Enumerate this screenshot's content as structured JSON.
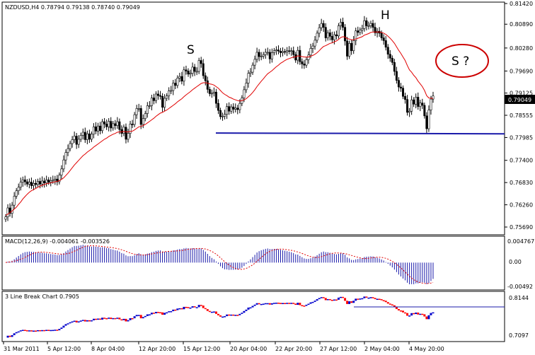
{
  "chart_data": [
    {
      "type": "candlestick",
      "title": "NZDUSD,H4  0.78794 0.79138 0.78740 0.79049",
      "ylim": [
        0.756,
        0.8142
      ],
      "y_ticks": [
        "0.81420",
        "0.80890",
        "0.80280",
        "0.79690",
        "0.79125",
        "0.78555",
        "0.77985",
        "0.77400",
        "0.76830",
        "0.76260",
        "0.75690"
      ],
      "last_price": "0.79049",
      "close": [
        0.7595,
        0.7618,
        0.7604,
        0.7625,
        0.7648,
        0.7662,
        0.7671,
        0.7684,
        0.769,
        0.7685,
        0.7679,
        0.7684,
        0.7675,
        0.7681,
        0.7678,
        0.7686,
        0.7679,
        0.7687,
        0.7682,
        0.769,
        0.7684,
        0.7688,
        0.7689,
        0.7692,
        0.7685,
        0.7702,
        0.7718,
        0.7741,
        0.776,
        0.777,
        0.7783,
        0.7793,
        0.7802,
        0.7781,
        0.7794,
        0.7804,
        0.7812,
        0.7793,
        0.7808,
        0.7794,
        0.7807,
        0.7826,
        0.7815,
        0.7828,
        0.7816,
        0.7839,
        0.7833,
        0.7826,
        0.784,
        0.7823,
        0.7834,
        0.7829,
        0.7839,
        0.7819,
        0.7809,
        0.7825,
        0.7794,
        0.7809,
        0.7833,
        0.7832,
        0.7857,
        0.7873,
        0.7873,
        0.7832,
        0.7847,
        0.786,
        0.788,
        0.788,
        0.79,
        0.7893,
        0.791,
        0.7906,
        0.7904,
        0.7876,
        0.7899,
        0.7905,
        0.7918,
        0.7919,
        0.7938,
        0.7932,
        0.7951,
        0.7955,
        0.7943,
        0.7972,
        0.7969,
        0.7961,
        0.7963,
        0.7979,
        0.7968,
        0.7968,
        0.7996,
        0.7988,
        0.7957,
        0.7944,
        0.7922,
        0.7911,
        0.7912,
        0.7915,
        0.7886,
        0.7868,
        0.7852,
        0.7853,
        0.7858,
        0.7878,
        0.7866,
        0.7877,
        0.7871,
        0.7874,
        0.787,
        0.7886,
        0.79,
        0.7921,
        0.7938,
        0.7963,
        0.7966,
        0.7984,
        0.7999,
        0.8017,
        0.8006,
        0.8007,
        0.8011,
        0.8017,
        0.8017,
        0.8,
        0.8016,
        0.8021,
        0.8023,
        0.802,
        0.8016,
        0.8019,
        0.8018,
        0.8021,
        0.802,
        0.8021,
        0.8011,
        0.7997,
        0.8022,
        0.7993,
        0.7987,
        0.7984,
        0.7998,
        0.801,
        0.8027,
        0.8033,
        0.8048,
        0.8066,
        0.808,
        0.8091,
        0.8081,
        0.8054,
        0.8067,
        0.8058,
        0.8049,
        0.8062,
        0.8059,
        0.8085,
        0.8094,
        0.8081,
        0.8046,
        0.8007,
        0.804,
        0.8021,
        0.8047,
        0.8072,
        0.8068,
        0.8074,
        0.8078,
        0.8098,
        0.8085,
        0.8085,
        0.8091,
        0.8081,
        0.8067,
        0.8071,
        0.8066,
        0.8054,
        0.8047,
        0.803,
        0.8012,
        0.8002,
        0.7991,
        0.7968,
        0.7945,
        0.7928,
        0.7925,
        0.7904,
        0.7896,
        0.7863,
        0.7866,
        0.7895,
        0.7884,
        0.7902,
        0.7878,
        0.7887,
        0.7881,
        0.7854,
        0.7821,
        0.7869,
        0.7897,
        0.7905
      ],
      "moving_average": [
        0.7599,
        0.7602,
        0.7606,
        0.761,
        0.7615,
        0.762,
        0.7627,
        0.7633,
        0.7641,
        0.7647,
        0.7653,
        0.7658,
        0.7662,
        0.7665,
        0.7668,
        0.7671,
        0.7674,
        0.7676,
        0.7678,
        0.768,
        0.7681,
        0.7682,
        0.7684,
        0.7685,
        0.7686,
        0.7688,
        0.7691,
        0.7695,
        0.7701,
        0.7707,
        0.7714,
        0.7721,
        0.7728,
        0.7734,
        0.774,
        0.7746,
        0.7752,
        0.7756,
        0.7761,
        0.7765,
        0.7769,
        0.7774,
        0.7778,
        0.7782,
        0.7786,
        0.779,
        0.7794,
        0.7797,
        0.7801,
        0.7804,
        0.7807,
        0.7809,
        0.7812,
        0.7813,
        0.7813,
        0.7814,
        0.7813,
        0.7813,
        0.7814,
        0.7815,
        0.7818,
        0.7822,
        0.7826,
        0.7827,
        0.7829,
        0.7832,
        0.7836,
        0.784,
        0.7844,
        0.7848,
        0.7853,
        0.7857,
        0.7861,
        0.7863,
        0.7866,
        0.7869,
        0.7873,
        0.7877,
        0.7881,
        0.7885,
        0.789,
        0.7894,
        0.7898,
        0.7903,
        0.7908,
        0.7912,
        0.7916,
        0.7921,
        0.7925,
        0.7929,
        0.7933,
        0.7937,
        0.7939,
        0.7939,
        0.7938,
        0.7936,
        0.7935,
        0.7933,
        0.7929,
        0.7925,
        0.7919,
        0.7913,
        0.7909,
        0.7906,
        0.7902,
        0.79,
        0.7897,
        0.7895,
        0.7893,
        0.7892,
        0.7893,
        0.7895,
        0.7898,
        0.7903,
        0.7908,
        0.7914,
        0.7921,
        0.7929,
        0.7936,
        0.7943,
        0.7949,
        0.7956,
        0.7962,
        0.7966,
        0.797,
        0.7975,
        0.798,
        0.7984,
        0.7989,
        0.7992,
        0.7996,
        0.7999,
        0.8001,
        0.8003,
        0.8005,
        0.8005,
        0.8008,
        0.8007,
        0.8006,
        0.8005,
        0.8005,
        0.8005,
        0.8007,
        0.8009,
        0.8012,
        0.8016,
        0.8021,
        0.8027,
        0.8032,
        0.8034,
        0.8037,
        0.804,
        0.8041,
        0.8044,
        0.8046,
        0.805,
        0.8055,
        0.8057,
        0.8056,
        0.8052,
        0.8051,
        0.8049,
        0.8049,
        0.8051,
        0.8053,
        0.8055,
        0.8057,
        0.8061,
        0.8063,
        0.8065,
        0.8068,
        0.8069,
        0.8069,
        0.8069,
        0.8069,
        0.8068,
        0.8066,
        0.8063,
        0.8058,
        0.8053,
        0.8047,
        0.804,
        0.8031,
        0.8022,
        0.8014,
        0.8005,
        0.7996,
        0.7983,
        0.7972,
        0.7966,
        0.7958,
        0.7952,
        0.7943,
        0.7936,
        0.7929,
        0.7919,
        0.7906,
        0.79,
        0.7899,
        0.7899
      ],
      "annotations": [
        "S",
        "H",
        "S ?"
      ],
      "neckline": 0.781,
      "x_ticks": [
        "31 Mar 2011",
        "5 Apr 12:00",
        "8 Apr 04:00",
        "12 Apr 20:00",
        "15 Apr 12:00",
        "20 Apr 04:00",
        "22 Apr 20:00",
        "27 Apr 12:00",
        "2 May 04:00",
        "4 May 20:00"
      ]
    },
    {
      "type": "bar",
      "title": "MACD(12,26,9) -0.004061 -0.003526",
      "y_ticks": [
        "0.004767",
        "0.00",
        "-0.00492"
      ],
      "ylim": [
        -0.0056,
        0.0054
      ]
    },
    {
      "type": "other",
      "title": "3 Line Break Chart 0.7905",
      "y_ticks": [
        "0.8144",
        "0.7097"
      ]
    }
  ],
  "colors": {
    "up": "#ffffff",
    "down": "#000000",
    "ma": "#e00000",
    "neckline": "#1a1aaa",
    "signal": "#e00000",
    "hist": "#1a1aaa",
    "lb_blue": "#0000cc",
    "lb_red": "#ff0000"
  }
}
